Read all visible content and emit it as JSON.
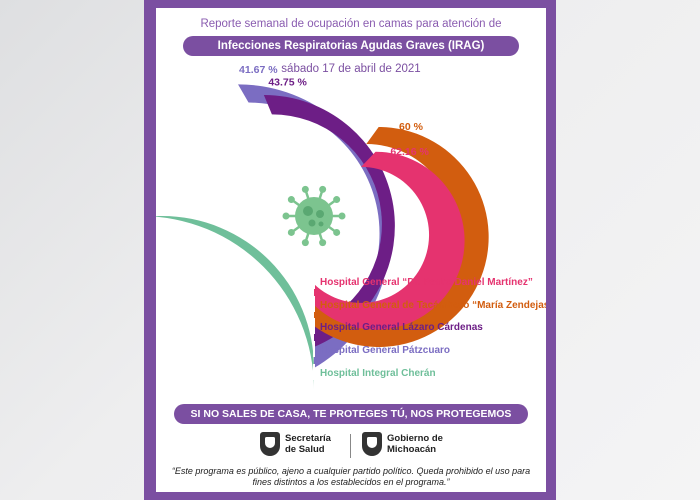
{
  "header": {
    "line1": "Reporte semanal de ocupación en camas para atención de",
    "line2": "Infecciones Respiratorias Agudas Graves (IRAG)",
    "line3": "sábado 17 de abril de 2021"
  },
  "chart_data": {
    "type": "radial-bar",
    "max": 100,
    "series": [
      {
        "name": "Hospital General “Dr. Pedro Daniel Martínez”",
        "value": 62.16,
        "label": "62.16 %",
        "color": "#e5336f"
      },
      {
        "name": "Hospital General de Tacámbaro “María Zendejas”",
        "value": 60,
        "label": "60 %",
        "color": "#d25d0f"
      },
      {
        "name": "Hospital General Lázaro Cárdenas",
        "value": 43.75,
        "label": "43.75 %",
        "color": "#6d1e86"
      },
      {
        "name": "Hospital General Pátzcuaro",
        "value": 41.67,
        "label": "41.67 %",
        "color": "#7b6dc2"
      },
      {
        "name": "Hospital Integral Cherán",
        "value": 25,
        "label": "25 %",
        "color": "#6fbf9a"
      }
    ]
  },
  "slogan": "SI NO SALES DE CASA, TE PROTEGES TÚ, NOS PROTEGEMOS TODOS.",
  "logos": {
    "left_line1": "Secretaría",
    "left_line2": "de Salud",
    "right_line1": "Gobierno de",
    "right_line2": "Michoacán"
  },
  "disclaimer": "“Este programa es público, ajeno a cualquier partido político. Queda prohibido el uso para fines distintos a los establecidos en el programa.”",
  "icons": {
    "virus": "virus-icon",
    "logo": "coat-of-arms-icon"
  }
}
